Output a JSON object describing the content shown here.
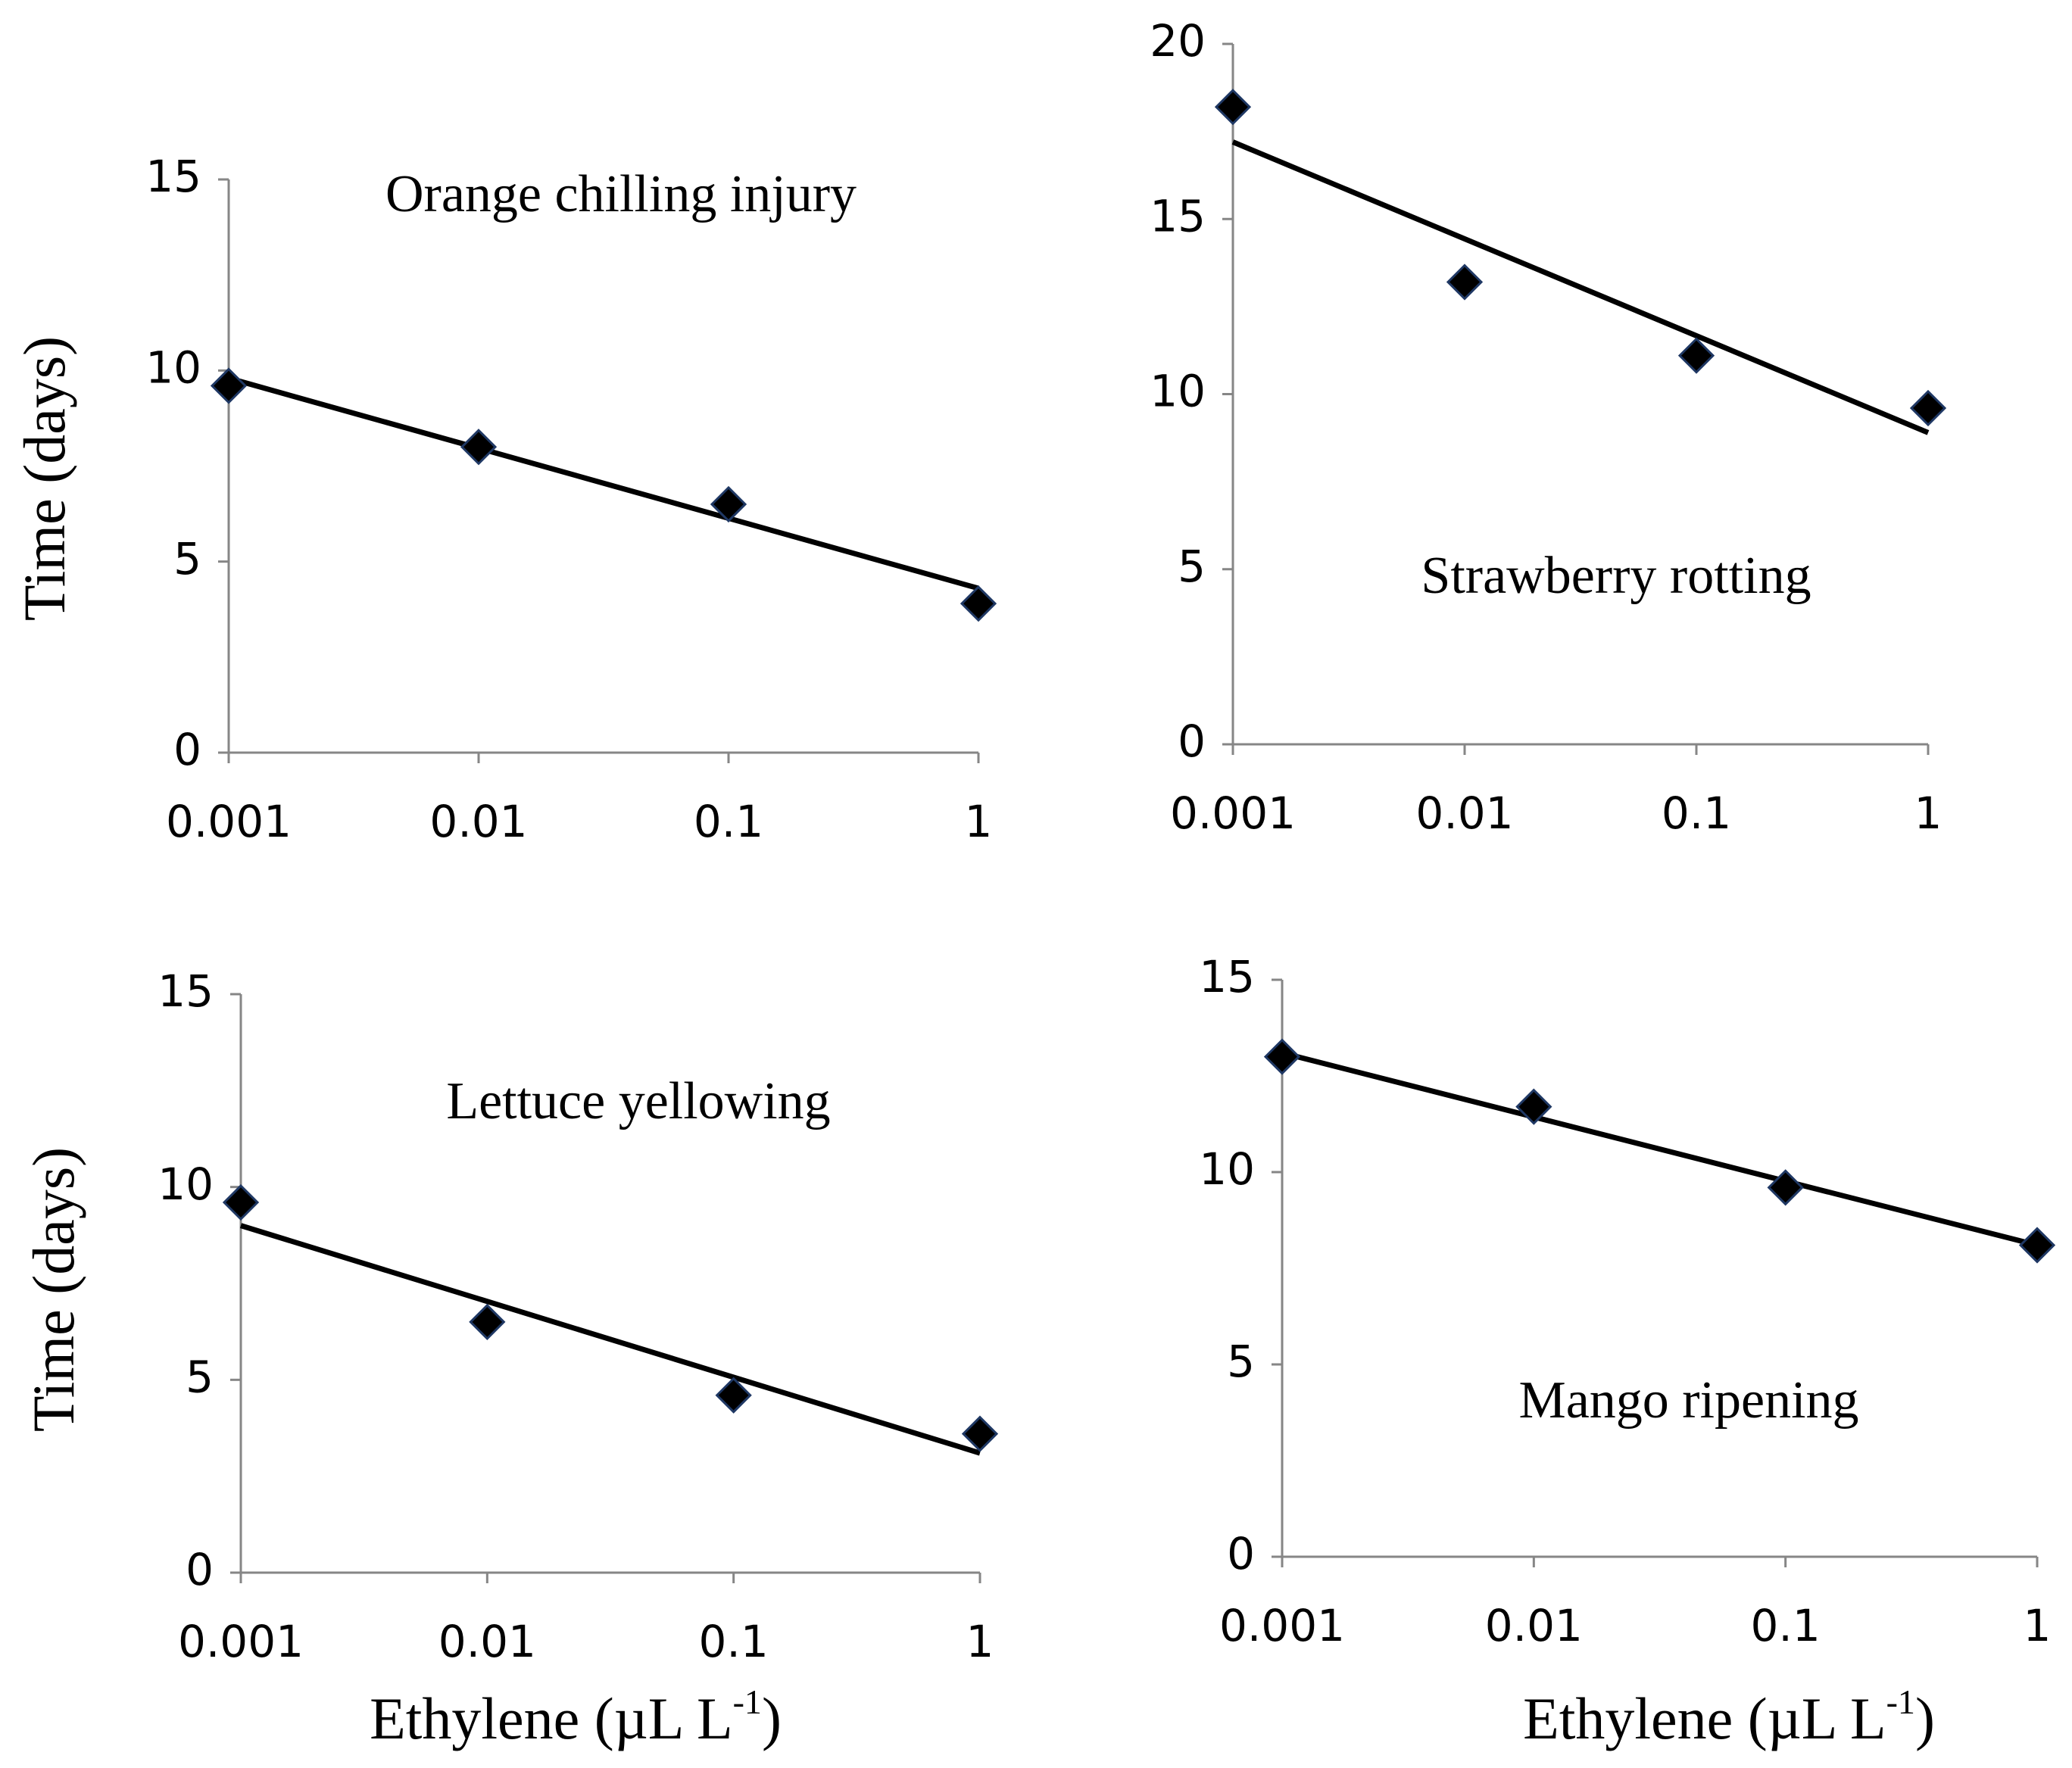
{
  "chart_data": [
    {
      "type": "scatter",
      "title": "Orange chilling injury",
      "ylabel": "Time (days)",
      "x": [
        0.001,
        0.01,
        0.1,
        1
      ],
      "values": [
        9.6,
        8.0,
        6.5,
        3.9
      ],
      "color": "#000000",
      "trendline": {
        "x": [
          0.001,
          1
        ],
        "values": [
          9.8,
          4.3
        ]
      },
      "xscale": "log",
      "xlim": [
        0.001,
        1
      ],
      "xticks": [
        0.001,
        0.01,
        0.1,
        1
      ],
      "ylim": [
        0,
        15
      ],
      "yticks": [
        0,
        5,
        10,
        15
      ],
      "grid": false
    },
    {
      "type": "scatter",
      "title": "Strawberry rotting",
      "x": [
        0.001,
        0.01,
        0.1,
        1
      ],
      "values": [
        18.2,
        13.2,
        11.1,
        9.6
      ],
      "color": "#000000",
      "trendline": {
        "x": [
          0.001,
          1
        ],
        "values": [
          17.2,
          8.9
        ]
      },
      "xscale": "log",
      "xlim": [
        0.001,
        1
      ],
      "xticks": [
        0.001,
        0.01,
        0.1,
        1
      ],
      "ylim": [
        0,
        20
      ],
      "yticks": [
        0,
        5,
        10,
        15,
        20
      ],
      "grid": false
    },
    {
      "type": "scatter",
      "title": "Lettuce yellowing",
      "ylabel": "Time (days)",
      "xlabel": [
        "Ethylene (µL L",
        "-1",
        ")"
      ],
      "x": [
        0.001,
        0.01,
        0.1,
        1
      ],
      "values": [
        9.6,
        6.5,
        4.6,
        3.6
      ],
      "color": "#000000",
      "trendline": {
        "x": [
          0.001,
          1
        ],
        "values": [
          9.0,
          3.1
        ]
      },
      "xscale": "log",
      "xlim": [
        0.001,
        1
      ],
      "xticks": [
        0.001,
        0.01,
        0.1,
        1
      ],
      "ylim": [
        0,
        15
      ],
      "yticks": [
        0,
        5,
        10,
        15
      ],
      "grid": false
    },
    {
      "type": "scatter",
      "title": "Mango ripening",
      "xlabel": [
        "Ethylene (µL L",
        "-1",
        ")"
      ],
      "x": [
        0.001,
        0.01,
        0.1,
        1
      ],
      "values": [
        13.0,
        11.7,
        9.6,
        8.1
      ],
      "color": "#000000",
      "trendline": {
        "x": [
          0.001,
          1
        ],
        "values": [
          13.1,
          8.1
        ]
      },
      "xscale": "log",
      "xlim": [
        0.001,
        1
      ],
      "xticks": [
        0.001,
        0.01,
        0.1,
        1
      ],
      "ylim": [
        0,
        15
      ],
      "yticks": [
        0,
        5,
        10,
        15
      ],
      "grid": false
    }
  ]
}
